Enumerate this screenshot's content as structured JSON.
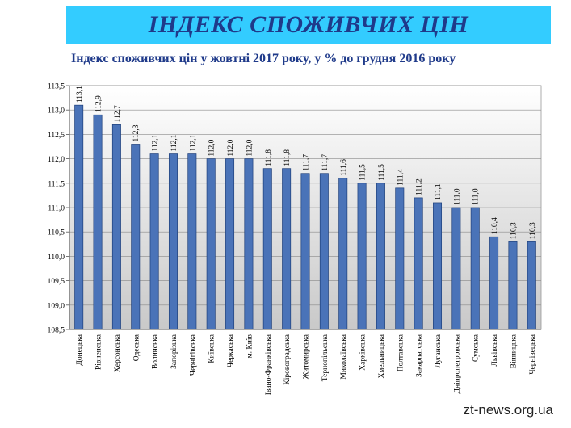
{
  "banner": {
    "title": "ІНДЕКС СПОЖИВЧИХ ЦІН"
  },
  "watermark": "zt-news.org.ua",
  "chart_data": {
    "type": "bar",
    "title": "Індекс споживчих цін у жовтні 2017 року, у % до грудня 2016 року",
    "xlabel": "",
    "ylabel": "",
    "ylim": [
      108.5,
      113.5
    ],
    "yticks": [
      "108,5",
      "109,0",
      "109,5",
      "110,0",
      "110,5",
      "111,0",
      "111,5",
      "112,0",
      "112,5",
      "113,0",
      "113,5"
    ],
    "grid": true,
    "bar_color": "#4a73b8",
    "categories": [
      "Донецька",
      "Рівненська",
      "Херсонська",
      "Одеська",
      "Волинська",
      "Запорізька",
      "Чернігівська",
      "Київська",
      "Черкаська",
      "м. Київ",
      "Івано-Франківська",
      "Кіровоградська",
      "Житомирська",
      "Тернопільська",
      "Миколаївська",
      "Харківська",
      "Хмельницька",
      "Полтавська",
      "Закарпатська",
      "Луганська",
      "Дніпропетровська",
      "Сумська",
      "Львівська",
      "Вінницька",
      "Чернівецька"
    ],
    "values": [
      113.1,
      112.9,
      112.7,
      112.3,
      112.1,
      112.1,
      112.1,
      112.0,
      112.0,
      112.0,
      111.8,
      111.8,
      111.7,
      111.7,
      111.6,
      111.5,
      111.5,
      111.4,
      111.2,
      111.1,
      111.0,
      111.0,
      110.4,
      110.3,
      110.3
    ],
    "labels": [
      "113,1",
      "112,9",
      "112,7",
      "112,3",
      "112,1",
      "112,1",
      "112,1",
      "112,0",
      "112,0",
      "112,0",
      "111,8",
      "111,8",
      "111,7",
      "111,7",
      "111,6",
      "111,5",
      "111,5",
      "111,4",
      "111,2",
      "111,1",
      "111,0",
      "111,0",
      "110,4",
      "110,3",
      "110,3"
    ]
  }
}
